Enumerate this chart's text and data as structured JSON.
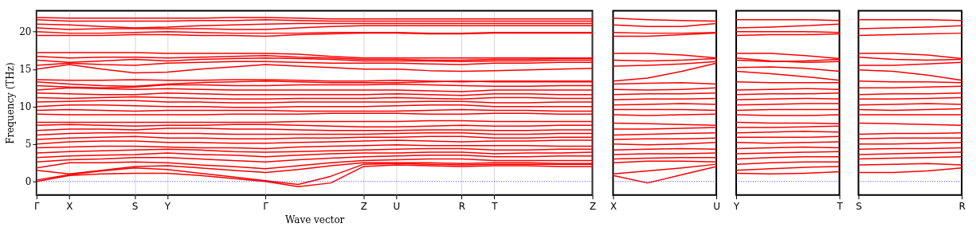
{
  "chart_data": [
    {
      "type": "line",
      "ylabel": "Frequency (THz)",
      "xlabel": "Wave vector",
      "grid": "x",
      "categories": [
        "Γ",
        "X",
        null,
        "S",
        "Y",
        null,
        null,
        "Γ",
        null,
        null,
        "Z",
        "U",
        null,
        "R",
        "T",
        null,
        null,
        "Z"
      ],
      "ylim": [
        -1.8,
        22.8
      ],
      "yticks": [
        0,
        5,
        10,
        15,
        20
      ],
      "ref_lines": [
        {
          "axis": "y",
          "value": 0,
          "color": "#0000ff",
          "line_style": "dotted"
        }
      ],
      "series": [
        {
          "color": "#ff0000",
          "values": [
            0,
            0.8,
            1.0,
            1.1,
            1.1,
            0.8,
            0.4,
            0,
            -0.7,
            -0.2,
            2.0,
            2.2,
            2.1,
            2.0,
            2.1,
            2.1,
            2.0,
            2.0
          ]
        },
        {
          "color": "#ff0000",
          "values": [
            0.2,
            0.9,
            1.4,
            1.8,
            1.6,
            1.1,
            0.6,
            0.1,
            -0.4,
            0.7,
            2.3,
            2.4,
            2.3,
            2.2,
            2.3,
            2.3,
            2.3,
            2.3
          ]
        },
        {
          "color": "#ff0000",
          "values": [
            1.5,
            1.0,
            1.5,
            2.0,
            2.1,
            1.8,
            1.5,
            1.2,
            1.6,
            2.1,
            2.5,
            2.5,
            2.5,
            2.4,
            2.5,
            2.5,
            2.4,
            2.4
          ]
        },
        {
          "color": "#ff0000",
          "values": [
            1.8,
            2.5,
            2.5,
            2.6,
            2.5,
            2.2,
            2.0,
            1.7,
            2.1,
            2.5,
            2.8,
            2.9,
            3.0,
            3.0,
            2.8,
            2.8,
            2.8,
            2.8
          ]
        },
        {
          "color": "#ff0000",
          "values": [
            2.6,
            2.9,
            3.0,
            3.2,
            3.2,
            3.0,
            2.8,
            2.6,
            2.9,
            3.1,
            3.3,
            3.4,
            3.5,
            3.5,
            3.3,
            3.3,
            3.4,
            3.4
          ]
        },
        {
          "color": "#ff0000",
          "values": [
            3.2,
            3.4,
            3.5,
            3.6,
            3.8,
            3.6,
            3.5,
            3.3,
            3.5,
            3.7,
            3.8,
            3.8,
            3.9,
            3.9,
            3.7,
            3.8,
            3.8,
            3.9
          ]
        },
        {
          "color": "#ff0000",
          "values": [
            3.8,
            4.0,
            4.1,
            4.2,
            4.3,
            4.2,
            4.0,
            3.9,
            4.0,
            4.1,
            4.2,
            4.3,
            4.4,
            4.4,
            4.2,
            4.2,
            4.3,
            4.3
          ]
        },
        {
          "color": "#ff0000",
          "values": [
            4.5,
            4.6,
            4.7,
            4.7,
            4.6,
            4.5,
            4.5,
            4.4,
            4.6,
            4.7,
            4.8,
            4.9,
            4.8,
            4.8,
            4.8,
            4.8,
            4.7,
            4.7
          ]
        },
        {
          "color": "#ff0000",
          "values": [
            5.0,
            5.3,
            5.4,
            5.4,
            5.2,
            5.2,
            5.1,
            5.1,
            5.2,
            5.3,
            5.4,
            5.5,
            5.4,
            5.3,
            5.4,
            5.4,
            5.5,
            5.5
          ]
        },
        {
          "color": "#ff0000",
          "values": [
            5.6,
            5.8,
            5.9,
            6.0,
            5.8,
            5.8,
            5.7,
            5.7,
            5.8,
            5.8,
            5.9,
            5.9,
            6.0,
            6.0,
            5.8,
            5.8,
            5.9,
            5.9
          ]
        },
        {
          "color": "#ff0000",
          "values": [
            6.2,
            6.4,
            6.5,
            6.5,
            6.4,
            6.4,
            6.3,
            6.3,
            6.3,
            6.3,
            6.3,
            6.4,
            6.5,
            6.5,
            6.3,
            6.3,
            6.4,
            6.4
          ]
        },
        {
          "color": "#ff0000",
          "values": [
            6.8,
            7.0,
            7.0,
            6.9,
            7.1,
            7.1,
            7.0,
            7.0,
            6.9,
            6.8,
            6.8,
            6.8,
            6.9,
            6.9,
            6.8,
            6.8,
            6.9,
            6.9
          ]
        },
        {
          "color": "#ff0000",
          "values": [
            7.5,
            7.6,
            7.5,
            7.4,
            7.5,
            7.5,
            7.6,
            7.6,
            7.5,
            7.4,
            7.3,
            7.3,
            7.4,
            7.5,
            7.4,
            7.4,
            7.5,
            7.5
          ]
        },
        {
          "color": "#ff0000",
          "values": [
            7.9,
            7.9,
            7.9,
            7.9,
            7.9,
            7.9,
            7.9,
            7.9,
            8.0,
            8.0,
            8.0,
            8.0,
            8.1,
            8.1,
            8.0,
            8.0,
            8.0,
            8.0
          ]
        },
        {
          "color": "#ff0000",
          "values": [
            9.0,
            8.9,
            8.9,
            8.9,
            8.9,
            8.9,
            9.0,
            9.0,
            9.0,
            9.1,
            9.1,
            9.1,
            9.0,
            9.0,
            9.1,
            9.1,
            9.0,
            9.0
          ]
        },
        {
          "color": "#ff0000",
          "values": [
            9.5,
            9.6,
            9.5,
            9.4,
            9.5,
            9.5,
            9.5,
            9.5,
            9.4,
            9.4,
            9.4,
            9.4,
            9.5,
            9.6,
            9.5,
            9.5,
            9.4,
            9.4
          ]
        },
        {
          "color": "#ff0000",
          "values": [
            10.0,
            10.2,
            10.2,
            10.1,
            10.0,
            10.0,
            9.9,
            9.9,
            10.0,
            10.0,
            10.0,
            10.1,
            10.2,
            10.2,
            10.0,
            10.0,
            10.0,
            10.0
          ]
        },
        {
          "color": "#ff0000",
          "values": [
            10.6,
            10.7,
            10.8,
            10.8,
            10.6,
            10.6,
            10.5,
            10.5,
            10.6,
            10.6,
            10.6,
            10.6,
            10.7,
            10.7,
            10.5,
            10.5,
            10.6,
            10.6
          ]
        },
        {
          "color": "#ff0000",
          "values": [
            11.2,
            11.1,
            11.2,
            11.3,
            11.2,
            11.1,
            11.0,
            11.0,
            11.1,
            11.1,
            11.1,
            11.2,
            11.1,
            11.0,
            11.2,
            11.2,
            11.1,
            11.1
          ]
        },
        {
          "color": "#ff0000",
          "values": [
            11.8,
            11.7,
            11.6,
            11.6,
            11.8,
            11.7,
            11.6,
            11.6,
            11.6,
            11.6,
            11.6,
            11.7,
            11.6,
            11.5,
            11.7,
            11.7,
            11.6,
            11.6
          ]
        },
        {
          "color": "#ff0000",
          "values": [
            12.2,
            12.5,
            12.4,
            12.3,
            12.4,
            12.3,
            12.2,
            12.2,
            12.2,
            12.2,
            12.2,
            12.2,
            12.1,
            12.0,
            12.2,
            12.2,
            12.2,
            12.2
          ]
        },
        {
          "color": "#ff0000",
          "values": [
            12.8,
            12.6,
            12.5,
            12.6,
            12.9,
            12.9,
            12.8,
            12.8,
            12.9,
            12.9,
            12.9,
            13.0,
            12.9,
            12.8,
            12.7,
            12.7,
            12.8,
            12.8
          ]
        },
        {
          "color": "#ff0000",
          "values": [
            13.3,
            13.0,
            12.8,
            12.7,
            13.0,
            13.2,
            13.3,
            13.4,
            13.3,
            13.2,
            13.2,
            13.2,
            13.3,
            13.4,
            13.3,
            13.3,
            13.3,
            13.3
          ]
        },
        {
          "color": "#ff0000",
          "values": [
            13.6,
            13.5,
            13.5,
            13.6,
            13.5,
            13.5,
            13.6,
            13.6,
            13.5,
            13.4,
            13.4,
            13.5,
            13.4,
            13.3,
            13.4,
            13.4,
            13.4,
            13.4
          ]
        },
        {
          "color": "#ff0000",
          "values": [
            15.0,
            15.6,
            15.0,
            14.5,
            14.6,
            15.0,
            15.3,
            15.6,
            15.4,
            15.2,
            15.0,
            15.0,
            14.8,
            14.7,
            14.8,
            14.9,
            15.0,
            15.1
          ]
        },
        {
          "color": "#ff0000",
          "values": [
            15.5,
            15.8,
            15.6,
            15.5,
            15.8,
            15.9,
            16.0,
            16.0,
            15.9,
            15.8,
            15.8,
            15.8,
            15.7,
            15.6,
            15.8,
            15.8,
            15.9,
            15.9
          ]
        },
        {
          "color": "#ff0000",
          "values": [
            16.2,
            15.9,
            16.1,
            16.3,
            16.1,
            16.3,
            16.4,
            16.5,
            16.4,
            16.3,
            16.1,
            16.1,
            16.1,
            16.0,
            16.1,
            16.1,
            16.2,
            16.2
          ]
        },
        {
          "color": "#ff0000",
          "values": [
            16.7,
            16.5,
            16.6,
            16.6,
            16.5,
            16.6,
            16.7,
            16.8,
            16.6,
            16.5,
            16.3,
            16.3,
            16.2,
            16.2,
            16.3,
            16.3,
            16.4,
            16.4
          ]
        },
        {
          "color": "#ff0000",
          "values": [
            17.2,
            17.2,
            17.2,
            17.2,
            17.1,
            17.1,
            17.1,
            17.1,
            17.0,
            16.7,
            16.5,
            16.5,
            16.5,
            16.5,
            16.5,
            16.5,
            16.5,
            16.5
          ]
        },
        {
          "color": "#ff0000",
          "values": [
            19.5,
            19.5,
            19.5,
            19.6,
            19.6,
            19.5,
            19.5,
            19.4,
            19.6,
            19.7,
            19.8,
            19.8,
            19.7,
            19.7,
            19.8,
            19.8,
            19.8,
            19.8
          ]
        },
        {
          "color": "#ff0000",
          "values": [
            20.0,
            19.8,
            19.8,
            19.9,
            20.0,
            19.9,
            19.8,
            19.8,
            19.8,
            19.9,
            19.9,
            19.9,
            19.8,
            19.8,
            19.9,
            19.9,
            19.9,
            19.9
          ]
        },
        {
          "color": "#ff0000",
          "values": [
            20.5,
            20.3,
            20.4,
            20.4,
            20.4,
            20.4,
            20.3,
            20.3,
            20.5,
            20.7,
            20.8,
            20.8,
            20.8,
            20.8,
            20.8,
            20.8,
            20.8,
            20.8
          ]
        },
        {
          "color": "#ff0000",
          "values": [
            21.0,
            20.9,
            20.7,
            20.5,
            20.6,
            20.8,
            20.9,
            21.0,
            21.1,
            21.1,
            21.1,
            21.1,
            21.1,
            21.1,
            21.1,
            21.1,
            21.1,
            21.1
          ]
        },
        {
          "color": "#ff0000",
          "values": [
            21.6,
            21.4,
            21.4,
            21.4,
            21.4,
            21.5,
            21.5,
            21.6,
            21.5,
            21.4,
            21.4,
            21.4,
            21.4,
            21.4,
            21.4,
            21.4,
            21.4,
            21.4
          ]
        },
        {
          "color": "#ff0000",
          "values": [
            21.9,
            21.8,
            21.8,
            21.8,
            21.8,
            21.8,
            21.9,
            21.9,
            21.8,
            21.7,
            21.7,
            21.7,
            21.7,
            21.7,
            21.7,
            21.7,
            21.7,
            21.7
          ]
        }
      ]
    },
    {
      "type": "line",
      "tick_labels": "x",
      "categories": [
        "X",
        null,
        null,
        "U"
      ],
      "ylim": [
        -1.8,
        22.8
      ],
      "ref_lines": [
        {
          "axis": "y",
          "value": 0,
          "color": "#0000ff",
          "line_style": "dotted"
        }
      ],
      "series": [
        {
          "color": "#ff0000",
          "values": [
            0.8,
            -0.2,
            0.9,
            2.0
          ]
        },
        {
          "color": "#ff0000",
          "values": [
            1.0,
            1.4,
            1.8,
            2.3
          ]
        },
        {
          "color": "#ff0000",
          "values": [
            2.5,
            2.7,
            2.7,
            2.6
          ]
        },
        {
          "color": "#ff0000",
          "values": [
            3.0,
            3.1,
            3.2,
            3.2
          ]
        },
        {
          "color": "#ff0000",
          "values": [
            3.6,
            3.7,
            3.7,
            3.8
          ]
        },
        {
          "color": "#ff0000",
          "values": [
            4.2,
            4.3,
            4.4,
            4.3
          ]
        },
        {
          "color": "#ff0000",
          "values": [
            5.0,
            4.9,
            5.0,
            5.2
          ]
        },
        {
          "color": "#ff0000",
          "values": [
            5.6,
            5.7,
            5.7,
            5.8
          ]
        },
        {
          "color": "#ff0000",
          "values": [
            6.2,
            6.3,
            6.4,
            6.5
          ]
        },
        {
          "color": "#ff0000",
          "values": [
            7.0,
            7.0,
            7.1,
            7.2
          ]
        },
        {
          "color": "#ff0000",
          "values": [
            7.8,
            7.7,
            7.6,
            7.5
          ]
        },
        {
          "color": "#ff0000",
          "values": [
            8.9,
            8.8,
            8.9,
            9.0
          ]
        },
        {
          "color": "#ff0000",
          "values": [
            9.6,
            9.6,
            9.6,
            9.5
          ]
        },
        {
          "color": "#ff0000",
          "values": [
            10.2,
            10.3,
            10.4,
            10.3
          ]
        },
        {
          "color": "#ff0000",
          "values": [
            10.9,
            11.0,
            11.0,
            11.1
          ]
        },
        {
          "color": "#ff0000",
          "values": [
            11.6,
            11.7,
            11.7,
            11.8
          ]
        },
        {
          "color": "#ff0000",
          "values": [
            12.3,
            12.2,
            12.3,
            12.5
          ]
        },
        {
          "color": "#ff0000",
          "values": [
            13.0,
            13.1,
            13.2,
            13.0
          ]
        },
        {
          "color": "#ff0000",
          "values": [
            13.4,
            13.8,
            14.7,
            15.8
          ]
        },
        {
          "color": "#ff0000",
          "values": [
            15.4,
            15.5,
            15.7,
            16.0
          ]
        },
        {
          "color": "#ff0000",
          "values": [
            16.2,
            16.1,
            16.2,
            16.4
          ]
        },
        {
          "color": "#ff0000",
          "values": [
            17.1,
            17.1,
            16.9,
            16.5
          ]
        },
        {
          "color": "#ff0000",
          "values": [
            19.4,
            19.4,
            19.6,
            19.8
          ]
        },
        {
          "color": "#ff0000",
          "values": [
            19.9,
            19.8,
            19.8,
            19.9
          ]
        },
        {
          "color": "#ff0000",
          "values": [
            20.9,
            20.7,
            20.7,
            21.1
          ]
        },
        {
          "color": "#ff0000",
          "values": [
            21.8,
            21.6,
            21.5,
            21.4
          ]
        }
      ]
    },
    {
      "type": "line",
      "tick_labels": "x",
      "categories": [
        "Y",
        null,
        null,
        "T"
      ],
      "ylim": [
        -1.8,
        22.8
      ],
      "ref_lines": [
        {
          "axis": "y",
          "value": 0,
          "color": "#0000ff",
          "line_style": "dotted"
        }
      ],
      "series": [
        {
          "color": "#ff0000",
          "values": [
            1.1,
            1.0,
            1.1,
            1.3
          ]
        },
        {
          "color": "#ff0000",
          "values": [
            1.5,
            1.7,
            1.9,
            2.0
          ]
        },
        {
          "color": "#ff0000",
          "values": [
            2.3,
            2.5,
            2.6,
            2.6
          ]
        },
        {
          "color": "#ff0000",
          "values": [
            3.0,
            3.2,
            3.3,
            3.3
          ]
        },
        {
          "color": "#ff0000",
          "values": [
            3.7,
            3.8,
            3.9,
            4.0
          ]
        },
        {
          "color": "#ff0000",
          "values": [
            4.4,
            4.5,
            4.6,
            4.5
          ]
        },
        {
          "color": "#ff0000",
          "values": [
            5.2,
            5.1,
            5.2,
            5.3
          ]
        },
        {
          "color": "#ff0000",
          "values": [
            5.9,
            5.9,
            5.9,
            6.0
          ]
        },
        {
          "color": "#ff0000",
          "values": [
            6.5,
            6.6,
            6.7,
            6.6
          ]
        },
        {
          "color": "#ff0000",
          "values": [
            7.2,
            7.2,
            7.3,
            7.4
          ]
        },
        {
          "color": "#ff0000",
          "values": [
            7.9,
            7.8,
            7.8,
            7.7
          ]
        },
        {
          "color": "#ff0000",
          "values": [
            8.9,
            8.8,
            8.8,
            8.9
          ]
        },
        {
          "color": "#ff0000",
          "values": [
            9.5,
            9.6,
            9.6,
            9.6
          ]
        },
        {
          "color": "#ff0000",
          "values": [
            10.2,
            10.3,
            10.4,
            10.4
          ]
        },
        {
          "color": "#ff0000",
          "values": [
            10.9,
            11.0,
            11.1,
            11.0
          ]
        },
        {
          "color": "#ff0000",
          "values": [
            11.6,
            11.7,
            11.7,
            11.8
          ]
        },
        {
          "color": "#ff0000",
          "values": [
            12.2,
            12.3,
            12.4,
            12.3
          ]
        },
        {
          "color": "#ff0000",
          "values": [
            13.3,
            13.2,
            13.2,
            13.2
          ]
        },
        {
          "color": "#ff0000",
          "values": [
            14.7,
            14.4,
            14.0,
            13.5
          ]
        },
        {
          "color": "#ff0000",
          "values": [
            15.2,
            15.3,
            15.1,
            14.7
          ]
        },
        {
          "color": "#ff0000",
          "values": [
            16.2,
            16.0,
            16.1,
            16.3
          ]
        },
        {
          "color": "#ff0000",
          "values": [
            16.5,
            16.1,
            15.9,
            16.0
          ]
        },
        {
          "color": "#ff0000",
          "values": [
            17.1,
            17.1,
            16.8,
            16.4
          ]
        },
        {
          "color": "#ff0000",
          "values": [
            19.5,
            19.6,
            19.6,
            19.7
          ]
        },
        {
          "color": "#ff0000",
          "values": [
            20.0,
            20.0,
            20.0,
            19.9
          ]
        },
        {
          "color": "#ff0000",
          "values": [
            20.5,
            20.6,
            20.8,
            21.0
          ]
        },
        {
          "color": "#ff0000",
          "values": [
            21.6,
            21.6,
            21.6,
            21.5
          ]
        }
      ]
    },
    {
      "type": "line",
      "tick_labels": "x",
      "categories": [
        "S",
        null,
        null,
        "R"
      ],
      "ylim": [
        -1.8,
        22.8
      ],
      "ref_lines": [
        {
          "axis": "y",
          "value": 0,
          "color": "#0000ff",
          "line_style": "dotted"
        }
      ],
      "series": [
        {
          "color": "#ff0000",
          "values": [
            1.2,
            1.2,
            1.4,
            1.8
          ]
        },
        {
          "color": "#ff0000",
          "values": [
            2.2,
            2.3,
            2.4,
            2.2
          ]
        },
        {
          "color": "#ff0000",
          "values": [
            3.0,
            3.1,
            3.2,
            3.3
          ]
        },
        {
          "color": "#ff0000",
          "values": [
            3.6,
            3.7,
            3.8,
            3.9
          ]
        },
        {
          "color": "#ff0000",
          "values": [
            4.3,
            4.4,
            4.4,
            4.5
          ]
        },
        {
          "color": "#ff0000",
          "values": [
            5.0,
            5.0,
            5.1,
            5.2
          ]
        },
        {
          "color": "#ff0000",
          "values": [
            5.7,
            5.8,
            5.8,
            5.8
          ]
        },
        {
          "color": "#ff0000",
          "values": [
            6.3,
            6.4,
            6.4,
            6.5
          ]
        },
        {
          "color": "#ff0000",
          "values": [
            7.8,
            7.7,
            7.6,
            7.5
          ]
        },
        {
          "color": "#ff0000",
          "values": [
            8.9,
            8.9,
            8.9,
            8.9
          ]
        },
        {
          "color": "#ff0000",
          "values": [
            9.6,
            9.5,
            9.6,
            9.7
          ]
        },
        {
          "color": "#ff0000",
          "values": [
            10.2,
            10.3,
            10.4,
            10.3
          ]
        },
        {
          "color": "#ff0000",
          "values": [
            11.0,
            11.0,
            11.1,
            11.2
          ]
        },
        {
          "color": "#ff0000",
          "values": [
            11.6,
            11.7,
            11.7,
            11.8
          ]
        },
        {
          "color": "#ff0000",
          "values": [
            12.5,
            12.5,
            12.6,
            12.7
          ]
        },
        {
          "color": "#ff0000",
          "values": [
            13.4,
            13.3,
            13.3,
            13.2
          ]
        },
        {
          "color": "#ff0000",
          "values": [
            14.9,
            14.7,
            14.2,
            13.5
          ]
        },
        {
          "color": "#ff0000",
          "values": [
            15.5,
            15.5,
            15.7,
            15.9
          ]
        },
        {
          "color": "#ff0000",
          "values": [
            16.6,
            16.3,
            16.2,
            16.3
          ]
        },
        {
          "color": "#ff0000",
          "values": [
            17.1,
            17.1,
            16.9,
            16.4
          ]
        },
        {
          "color": "#ff0000",
          "values": [
            19.5,
            19.6,
            19.7,
            19.8
          ]
        },
        {
          "color": "#ff0000",
          "values": [
            20.4,
            20.5,
            20.6,
            20.8
          ]
        },
        {
          "color": "#ff0000",
          "values": [
            21.6,
            21.6,
            21.6,
            21.5
          ]
        }
      ]
    }
  ]
}
